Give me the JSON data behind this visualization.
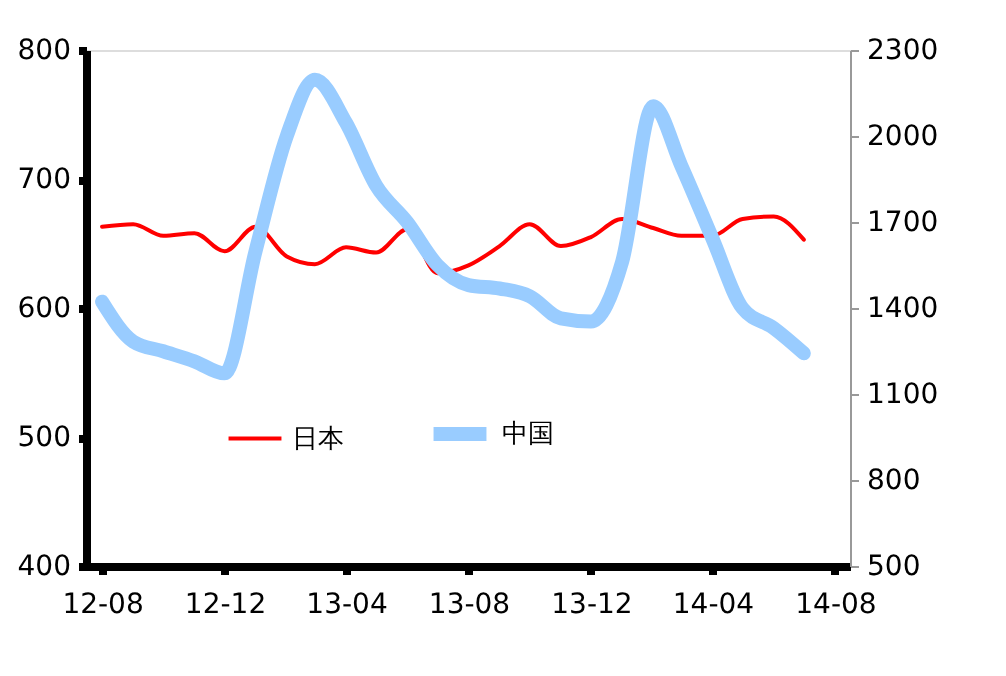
{
  "chart_data": {
    "type": "line",
    "x": [
      "2012-08",
      "2012-09",
      "2012-10",
      "2012-11",
      "2012-12",
      "2013-01",
      "2013-02",
      "2013-03",
      "2013-04",
      "2013-05",
      "2013-06",
      "2013-07",
      "2013-08",
      "2013-09",
      "2013-10",
      "2013-11",
      "2013-12",
      "2014-01",
      "2014-02",
      "2014-03",
      "2014-04",
      "2014-05",
      "2014-06",
      "2014-07"
    ],
    "series": [
      {
        "name": "日本",
        "color": "#ff0000",
        "values": [
          663,
          665,
          656,
          658,
          644,
          663,
          640,
          634,
          647,
          643,
          661,
          627,
          633,
          648,
          665,
          648,
          655,
          669,
          662,
          656,
          656,
          669,
          671,
          653
        ]
      },
      {
        "name": "中国",
        "color": "#99ccff",
        "axis": "y2",
        "values": [
          1422,
          1283,
          1249,
          1214,
          1172,
          1600,
          2000,
          2196,
          2046,
          1827,
          1699,
          1550,
          1480,
          1468,
          1441,
          1364,
          1353,
          1561,
          2104,
          1896,
          1642,
          1399,
          1330,
          1242
        ]
      }
    ],
    "xlim": [
      "2012-07-16",
      "2014-08-16"
    ],
    "xticks": [
      {
        "value": "2012-08",
        "label": "12-08"
      },
      {
        "value": "2012-12",
        "label": "12-12"
      },
      {
        "value": "2013-04",
        "label": "13-04"
      },
      {
        "value": "2013-08",
        "label": "13-08"
      },
      {
        "value": "2013-12",
        "label": "13-12"
      },
      {
        "value": "2014-04",
        "label": "14-04"
      },
      {
        "value": "2014-08",
        "label": "14-08"
      }
    ],
    "ylim": [
      400,
      800
    ],
    "yticks": [
      400,
      500,
      600,
      700,
      800
    ],
    "y2lim": [
      500,
      2300
    ],
    "y2ticks": [
      500,
      800,
      1100,
      1400,
      1700,
      2000,
      2300
    ],
    "legend": "bottom",
    "grid": false
  }
}
